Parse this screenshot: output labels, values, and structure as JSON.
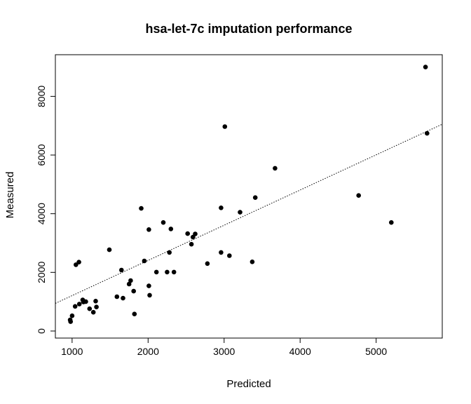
{
  "chart_data": {
    "type": "scatter",
    "title": "hsa-let-7c imputation performance",
    "xlabel": "Predicted",
    "ylabel": "Measured",
    "xlim": [
      780,
      5870
    ],
    "ylim": [
      -240,
      9420
    ],
    "xticks": [
      1000,
      2000,
      3000,
      4000,
      5000
    ],
    "yticks": [
      0,
      2000,
      4000,
      6000,
      8000
    ],
    "grid": false,
    "point_color": "#000000",
    "fit_line": {
      "style": "dotted",
      "intercept": 7,
      "slope": 1.2
    },
    "points": [
      {
        "x": 975,
        "y": 380
      },
      {
        "x": 980,
        "y": 320
      },
      {
        "x": 1000,
        "y": 520
      },
      {
        "x": 1040,
        "y": 840
      },
      {
        "x": 1050,
        "y": 2260
      },
      {
        "x": 1090,
        "y": 2350
      },
      {
        "x": 1095,
        "y": 920
      },
      {
        "x": 1140,
        "y": 1060
      },
      {
        "x": 1150,
        "y": 990
      },
      {
        "x": 1180,
        "y": 1000
      },
      {
        "x": 1230,
        "y": 760
      },
      {
        "x": 1280,
        "y": 640
      },
      {
        "x": 1310,
        "y": 1020
      },
      {
        "x": 1320,
        "y": 820
      },
      {
        "x": 1490,
        "y": 2770
      },
      {
        "x": 1590,
        "y": 1170
      },
      {
        "x": 1650,
        "y": 2080
      },
      {
        "x": 1670,
        "y": 1120
      },
      {
        "x": 1750,
        "y": 1600
      },
      {
        "x": 1770,
        "y": 1720
      },
      {
        "x": 1810,
        "y": 1360
      },
      {
        "x": 1820,
        "y": 580
      },
      {
        "x": 1910,
        "y": 4180
      },
      {
        "x": 1950,
        "y": 2390
      },
      {
        "x": 2010,
        "y": 3460
      },
      {
        "x": 2010,
        "y": 1540
      },
      {
        "x": 2020,
        "y": 1220
      },
      {
        "x": 2110,
        "y": 2010
      },
      {
        "x": 2200,
        "y": 3700
      },
      {
        "x": 2250,
        "y": 2010
      },
      {
        "x": 2280,
        "y": 2680
      },
      {
        "x": 2300,
        "y": 3480
      },
      {
        "x": 2340,
        "y": 2010
      },
      {
        "x": 2520,
        "y": 3320
      },
      {
        "x": 2570,
        "y": 2960
      },
      {
        "x": 2590,
        "y": 3200
      },
      {
        "x": 2620,
        "y": 3310
      },
      {
        "x": 2780,
        "y": 2300
      },
      {
        "x": 2960,
        "y": 2680
      },
      {
        "x": 2960,
        "y": 4200
      },
      {
        "x": 3010,
        "y": 6970
      },
      {
        "x": 3070,
        "y": 2570
      },
      {
        "x": 3210,
        "y": 4050
      },
      {
        "x": 3370,
        "y": 2360
      },
      {
        "x": 3410,
        "y": 4550
      },
      {
        "x": 3670,
        "y": 5550
      },
      {
        "x": 4770,
        "y": 4620
      },
      {
        "x": 5200,
        "y": 3700
      },
      {
        "x": 5650,
        "y": 9000
      },
      {
        "x": 5670,
        "y": 6740
      }
    ]
  }
}
